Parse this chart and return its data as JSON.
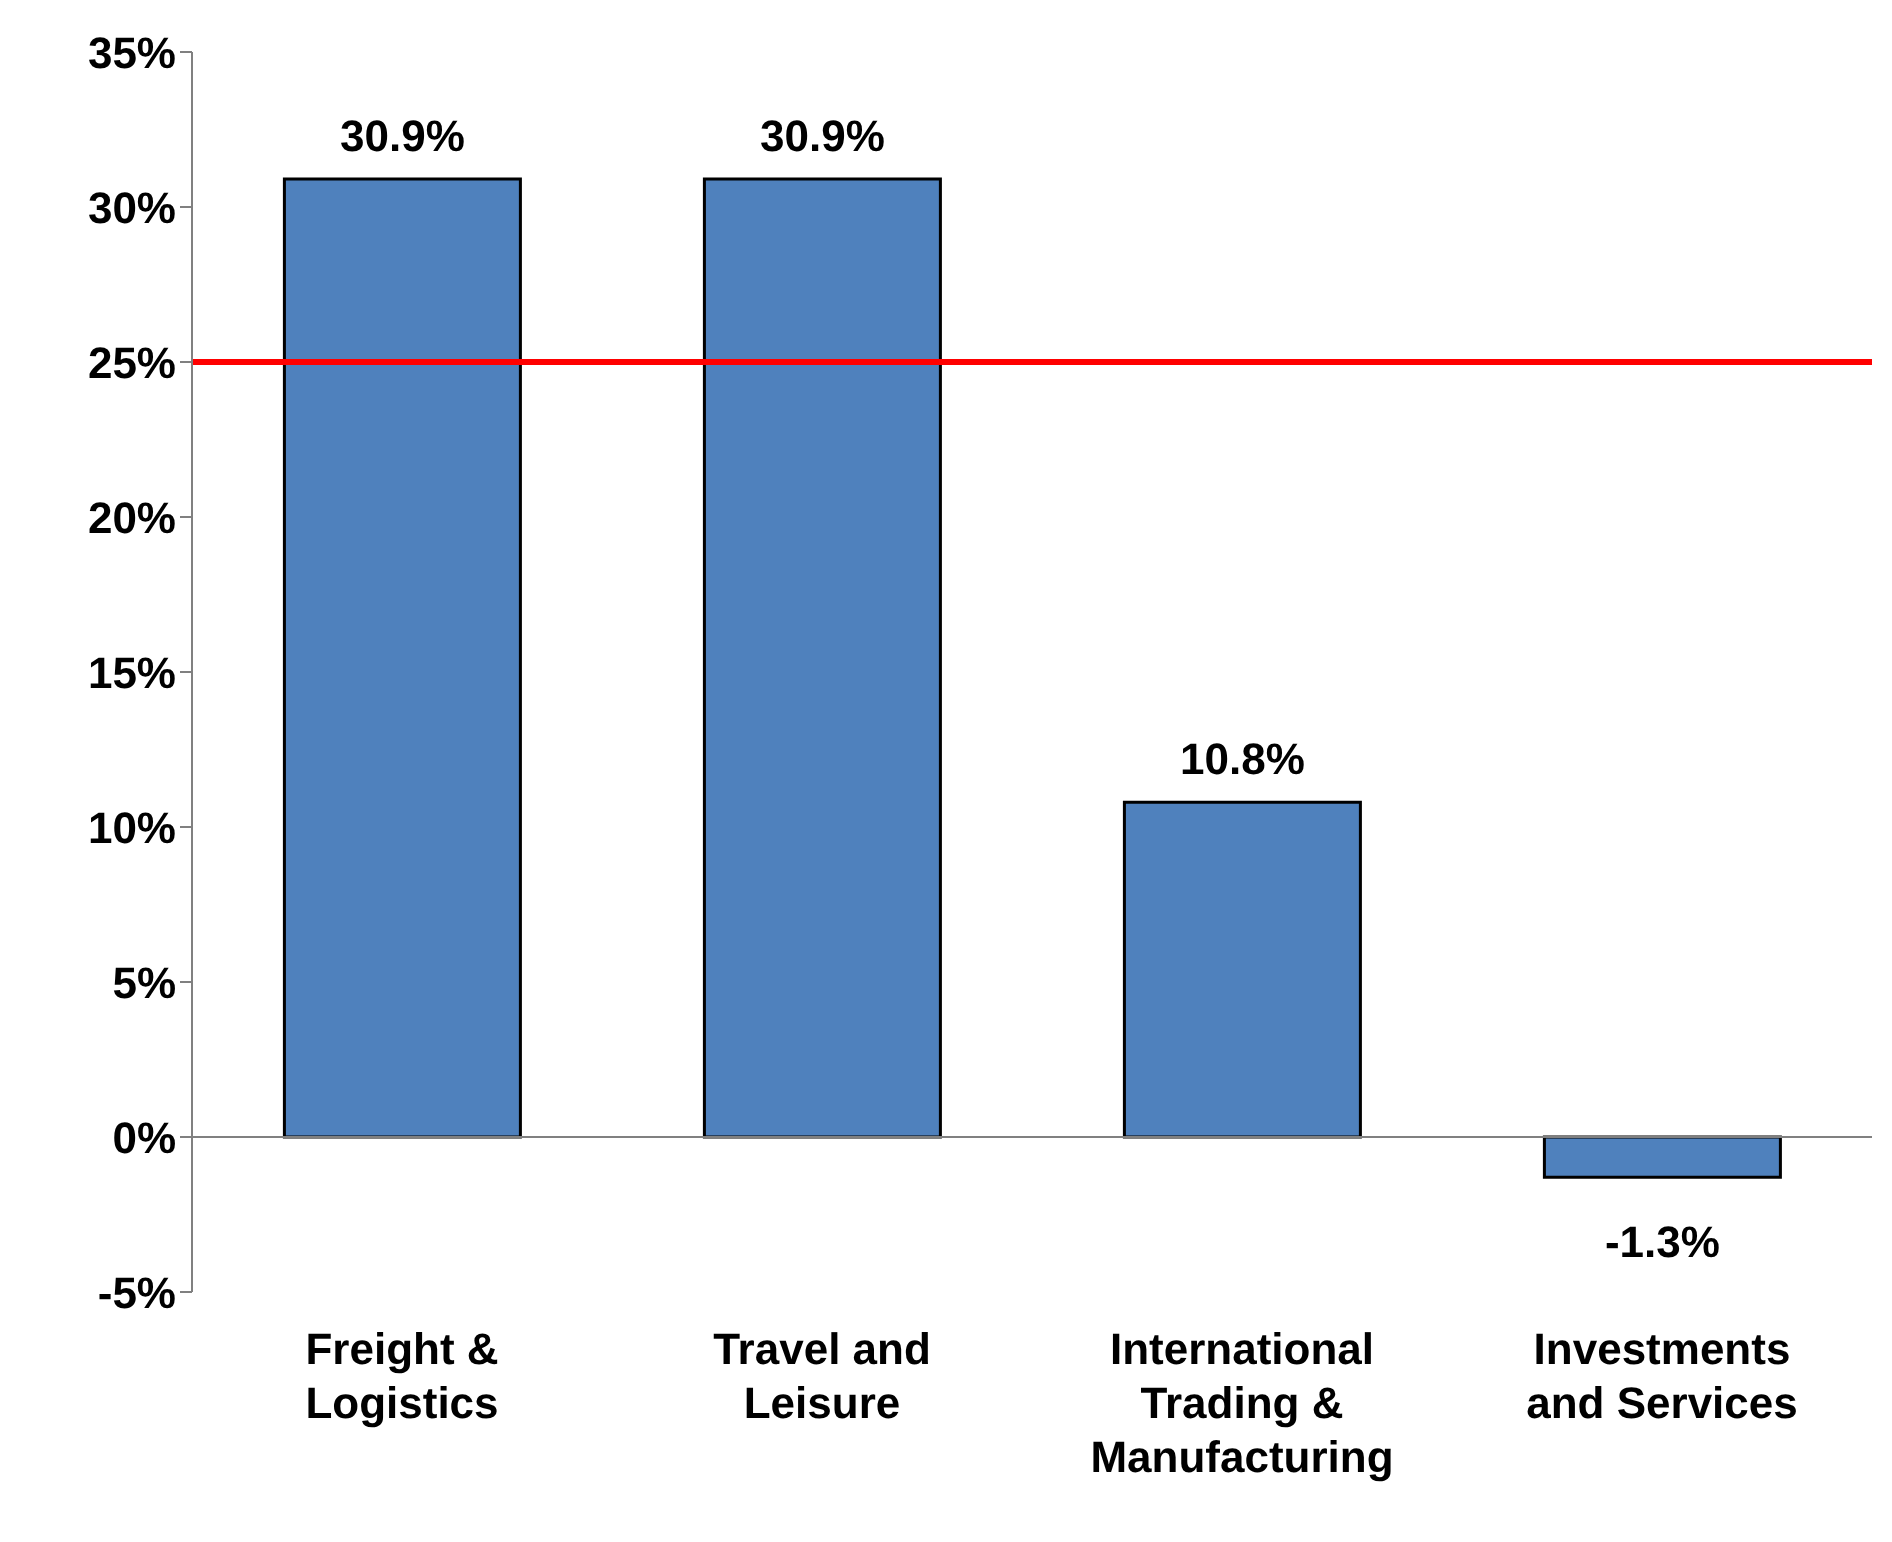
{
  "chart_data": {
    "type": "bar",
    "categories": [
      "Freight & Logistics",
      "Travel and Leisure",
      "International Trading & Manufacturing",
      "Investments and Services"
    ],
    "values": [
      30.9,
      30.9,
      10.8,
      -1.3
    ],
    "color": "#4f81bd",
    "value_labels": [
      "30.9%",
      "30.9%",
      "10.8%",
      "-1.3%"
    ],
    "ylim": [
      -5,
      35
    ],
    "yticks": [
      {
        "value": -5,
        "label": "-5%"
      },
      {
        "value": 0,
        "label": "0%"
      },
      {
        "value": 5,
        "label": "5%"
      },
      {
        "value": 10,
        "label": "10%"
      },
      {
        "value": 15,
        "label": "15%"
      },
      {
        "value": 20,
        "label": "20%"
      },
      {
        "value": 25,
        "label": "25%"
      },
      {
        "value": 30,
        "label": "30%"
      },
      {
        "value": 35,
        "label": "35%"
      }
    ],
    "ref_lines": [
      {
        "axis": "y",
        "value": 25,
        "color": "#ff0000"
      }
    ],
    "grid": false,
    "legend": false
  }
}
